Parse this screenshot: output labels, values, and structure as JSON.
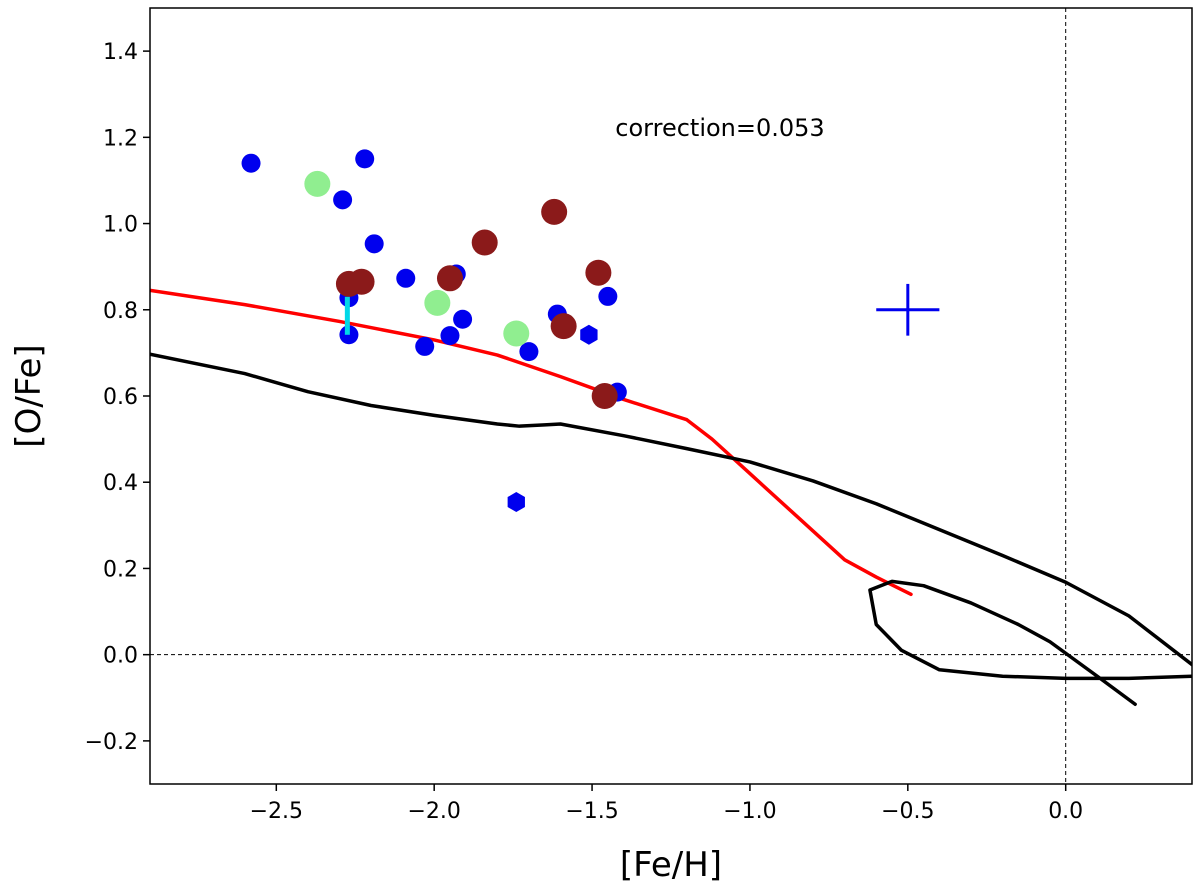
{
  "chart_data": {
    "type": "scatter",
    "xlabel": "[Fe/H]",
    "ylabel": "[O/Fe]",
    "xlim": [
      -2.9,
      0.4
    ],
    "ylim": [
      -0.3,
      1.5
    ],
    "xticks": [
      -2.5,
      -2.0,
      -1.5,
      -1.0,
      -0.5,
      0.0
    ],
    "xtick_labels": [
      "−2.5",
      "−2.0",
      "−1.5",
      "−1.0",
      "−0.5",
      "0.0"
    ],
    "yticks": [
      -0.2,
      0.0,
      0.2,
      0.4,
      0.6,
      0.8,
      1.0,
      1.2,
      1.4
    ],
    "ytick_labels": [
      "−0.2",
      "0.0",
      "0.2",
      "0.4",
      "0.6",
      "0.8",
      "1.0",
      "1.2",
      "1.4"
    ],
    "grid": false,
    "legend": "none",
    "annotation": "correction=0.053",
    "reference_lines": {
      "x": 0.0,
      "y": 0.0,
      "style": "dashed"
    },
    "series": [
      {
        "marker": "circle-small",
        "color": "#0000ee",
        "points": [
          [
            -2.58,
            1.14
          ],
          [
            -2.22,
            1.15
          ],
          [
            -2.29,
            1.055
          ],
          [
            -2.19,
            0.953
          ],
          [
            -2.09,
            0.873
          ],
          [
            -1.93,
            0.883
          ],
          [
            -2.27,
            0.828
          ],
          [
            -2.27,
            0.742
          ],
          [
            -2.03,
            0.715
          ],
          [
            -1.95,
            0.74
          ],
          [
            -1.91,
            0.778
          ],
          [
            -1.7,
            0.703
          ],
          [
            -1.61,
            0.79
          ],
          [
            -1.45,
            0.831
          ],
          [
            -1.42,
            0.609
          ]
        ]
      },
      {
        "marker": "hexagon",
        "color": "#0000ee",
        "points": [
          [
            -1.51,
            0.742
          ],
          [
            -1.74,
            0.354
          ]
        ]
      },
      {
        "marker": "circle-large",
        "color": "#90ee90",
        "points": [
          [
            -2.37,
            1.092
          ],
          [
            -1.99,
            0.816
          ],
          [
            -1.74,
            0.745
          ]
        ]
      },
      {
        "marker": "circle-large",
        "color": "#8b1a1a",
        "points": [
          [
            -2.27,
            0.86
          ],
          [
            -2.23,
            0.865
          ],
          [
            -1.95,
            0.873
          ],
          [
            -1.84,
            0.956
          ],
          [
            -1.62,
            1.027
          ],
          [
            -1.59,
            0.762
          ],
          [
            -1.48,
            0.886
          ],
          [
            -1.46,
            0.6
          ]
        ]
      },
      {
        "type": "segment",
        "color": "#00d8e8",
        "points": [
          [
            -2.275,
            0.83
          ],
          [
            -2.275,
            0.742
          ]
        ]
      },
      {
        "type": "errorbar",
        "color": "#0000ee",
        "center": [
          -0.5,
          0.8
        ],
        "x_err": 0.1,
        "y_err": 0.06
      },
      {
        "type": "line",
        "color": "#ff0000",
        "points": [
          [
            -2.9,
            0.845
          ],
          [
            -2.6,
            0.812
          ],
          [
            -2.3,
            0.773
          ],
          [
            -2.0,
            0.73
          ],
          [
            -1.8,
            0.695
          ],
          [
            -1.6,
            0.645
          ],
          [
            -1.4,
            0.592
          ],
          [
            -1.2,
            0.545
          ],
          [
            -1.12,
            0.5
          ],
          [
            -1.0,
            0.42
          ],
          [
            -0.85,
            0.32
          ],
          [
            -0.7,
            0.22
          ],
          [
            -0.6,
            0.18
          ],
          [
            -0.49,
            0.14
          ]
        ]
      },
      {
        "type": "line",
        "color": "#000000",
        "points": [
          [
            -2.9,
            0.697
          ],
          [
            -2.6,
            0.652
          ],
          [
            -2.4,
            0.61
          ],
          [
            -2.2,
            0.578
          ],
          [
            -2.0,
            0.555
          ],
          [
            -1.8,
            0.535
          ],
          [
            -1.73,
            0.53
          ],
          [
            -1.65,
            0.533
          ],
          [
            -1.6,
            0.535
          ],
          [
            -1.4,
            0.508
          ],
          [
            -1.2,
            0.478
          ],
          [
            -1.0,
            0.447
          ],
          [
            -0.8,
            0.403
          ],
          [
            -0.6,
            0.35
          ],
          [
            -0.4,
            0.29
          ],
          [
            -0.2,
            0.23
          ],
          [
            0.0,
            0.168
          ],
          [
            0.2,
            0.09
          ],
          [
            0.4,
            -0.023
          ]
        ]
      },
      {
        "type": "line",
        "color": "#000000",
        "points": [
          [
            0.22,
            -0.115
          ],
          [
            0.1,
            -0.05
          ],
          [
            -0.05,
            0.03
          ],
          [
            -0.15,
            0.07
          ],
          [
            -0.3,
            0.12
          ],
          [
            -0.45,
            0.16
          ],
          [
            -0.55,
            0.17
          ],
          [
            -0.62,
            0.15
          ],
          [
            -0.6,
            0.07
          ],
          [
            -0.52,
            0.01
          ],
          [
            -0.4,
            -0.035
          ],
          [
            -0.2,
            -0.05
          ],
          [
            0.0,
            -0.055
          ],
          [
            0.2,
            -0.055
          ],
          [
            0.4,
            -0.05
          ]
        ]
      }
    ]
  }
}
